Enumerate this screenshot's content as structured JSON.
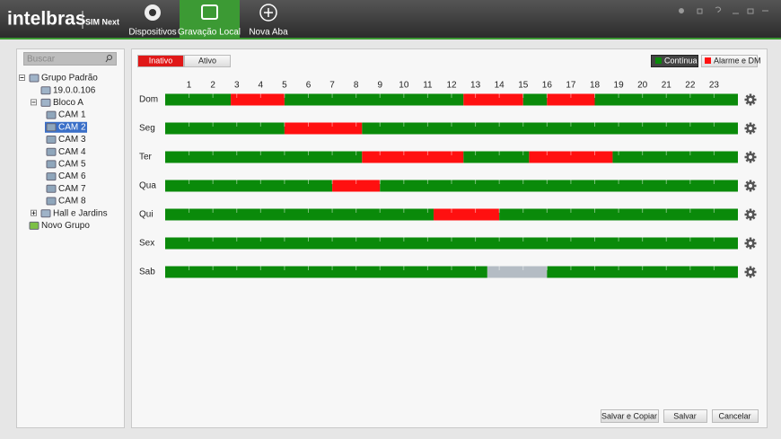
{
  "header": {
    "logo": "intelbras",
    "product": "SIM Next",
    "tabs": [
      "Dispositivos",
      "Gravação Local",
      "Nova Aba"
    ]
  },
  "sidebar": {
    "search_placeholder": "Buscar",
    "tree": [
      {
        "label": "Grupo Padrão",
        "children": [
          {
            "label": "19.0.0.106"
          },
          {
            "label": "Bloco A",
            "children": [
              {
                "label": "CAM 1"
              },
              {
                "label": "CAM 2"
              },
              {
                "label": "CAM 3"
              },
              {
                "label": "CAM 4"
              },
              {
                "label": "CAM 5"
              },
              {
                "label": "CAM 6"
              },
              {
                "label": "CAM 7"
              },
              {
                "label": "CAM 8"
              }
            ]
          },
          {
            "label": "Hall e Jardins"
          }
        ]
      },
      {
        "label": "Novo Grupo"
      }
    ]
  },
  "schedule": {
    "mode_buttons": [
      "Inativo",
      "Ativo"
    ],
    "legend": [
      {
        "label": "Contínua",
        "color": "#0a8a0a"
      },
      {
        "label": "Alarme e DM",
        "color": "#ff1010"
      }
    ],
    "hours": [
      1,
      2,
      3,
      4,
      5,
      6,
      7,
      8,
      9,
      10,
      11,
      12,
      13,
      14,
      15,
      16,
      17,
      18,
      19,
      20,
      21,
      22,
      23
    ],
    "days": [
      {
        "label": "Dom",
        "segments": [
          {
            "start": 0,
            "end": 2.75,
            "color": "#0a8a0a"
          },
          {
            "start": 2.75,
            "end": 5,
            "color": "#ff1010"
          },
          {
            "start": 5,
            "end": 12.5,
            "color": "#0a8a0a"
          },
          {
            "start": 12.5,
            "end": 15,
            "color": "#ff1010"
          },
          {
            "start": 15,
            "end": 16,
            "color": "#0a8a0a"
          },
          {
            "start": 16,
            "end": 18,
            "color": "#ff1010"
          },
          {
            "start": 18,
            "end": 24,
            "color": "#0a8a0a"
          }
        ]
      },
      {
        "label": "Seg",
        "segments": [
          {
            "start": 0,
            "end": 5,
            "color": "#0a8a0a"
          },
          {
            "start": 5,
            "end": 8.25,
            "color": "#ff1010"
          },
          {
            "start": 8.25,
            "end": 24,
            "color": "#0a8a0a"
          }
        ]
      },
      {
        "label": "Ter",
        "segments": [
          {
            "start": 0,
            "end": 8.25,
            "color": "#0a8a0a"
          },
          {
            "start": 8.25,
            "end": 12.5,
            "color": "#ff1010"
          },
          {
            "start": 12.5,
            "end": 15.25,
            "color": "#0a8a0a"
          },
          {
            "start": 15.25,
            "end": 18.75,
            "color": "#ff1010"
          },
          {
            "start": 18.75,
            "end": 24,
            "color": "#0a8a0a"
          }
        ]
      },
      {
        "label": "Qua",
        "segments": [
          {
            "start": 0,
            "end": 7,
            "color": "#0a8a0a"
          },
          {
            "start": 7,
            "end": 9,
            "color": "#ff1010"
          },
          {
            "start": 9,
            "end": 24,
            "color": "#0a8a0a"
          }
        ]
      },
      {
        "label": "Qui",
        "segments": [
          {
            "start": 0,
            "end": 11.25,
            "color": "#0a8a0a"
          },
          {
            "start": 11.25,
            "end": 14,
            "color": "#ff1010"
          },
          {
            "start": 14,
            "end": 24,
            "color": "#0a8a0a"
          }
        ]
      },
      {
        "label": "Sex",
        "segments": [
          {
            "start": 0,
            "end": 24,
            "color": "#0a8a0a"
          }
        ]
      },
      {
        "label": "Sab",
        "segments": [
          {
            "start": 0,
            "end": 13.5,
            "color": "#0a8a0a"
          },
          {
            "start": 13.5,
            "end": 16,
            "color": "#b4bcc4"
          },
          {
            "start": 16,
            "end": 24,
            "color": "#0a8a0a"
          }
        ]
      }
    ]
  },
  "footer_buttons": [
    "Salvar e Copiar",
    "Salvar",
    "Cancelar"
  ]
}
